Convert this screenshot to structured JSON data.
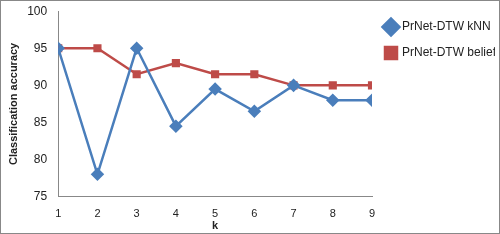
{
  "chart_data": {
    "type": "line",
    "categories": [
      "1",
      "2",
      "3",
      "4",
      "5",
      "6",
      "7",
      "8",
      "9"
    ],
    "series": [
      {
        "name": "PrNet-DTW kNN",
        "color": "#4a7ebb",
        "marker": "diamond",
        "line_style": "solid",
        "values": [
          95,
          78,
          95,
          84.5,
          89.5,
          86.5,
          90,
          88,
          88
        ]
      },
      {
        "name": "PrNet-DTW belief kNN",
        "color": "#be4b48",
        "marker": "square",
        "line_style": "solid",
        "values": [
          95,
          95,
          91.5,
          93,
          91.5,
          91.5,
          90,
          90,
          90
        ]
      }
    ],
    "x_label": "k",
    "y_label": "Classification accuracy",
    "ylim": [
      75,
      100
    ],
    "yticks": [
      75,
      80,
      85,
      90,
      95,
      100
    ],
    "grid": false,
    "legend": "right"
  }
}
